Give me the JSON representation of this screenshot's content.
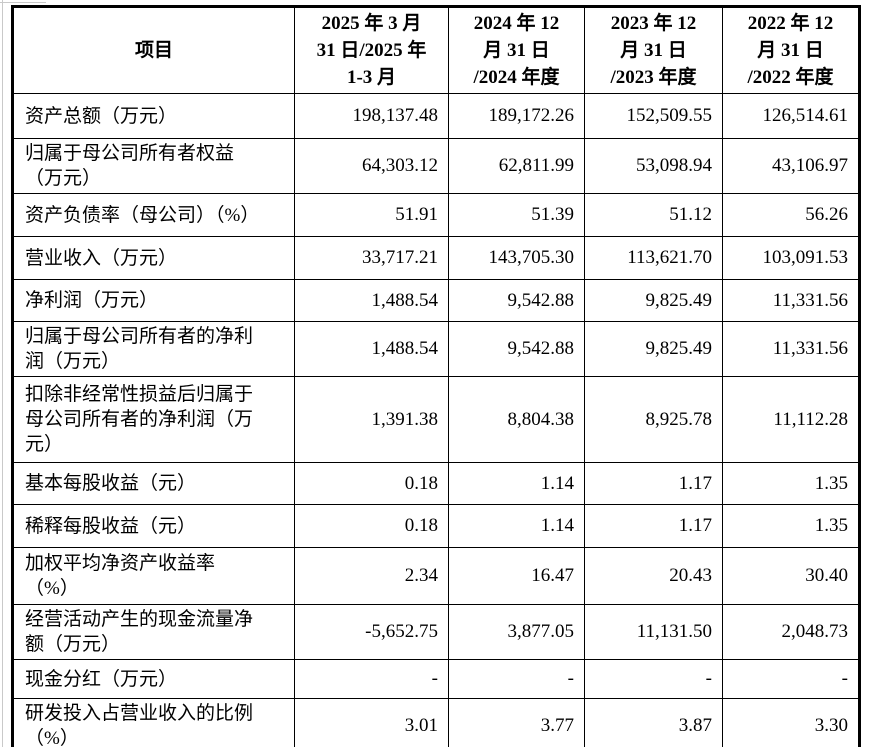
{
  "page": {
    "background": "#ffffff",
    "border_color": "#000000",
    "text_color": "#000000"
  },
  "table": {
    "columns": [
      "项目",
      "2025 年 3 月\n31 日/2025 年\n1-3 月",
      "2024 年 12\n月 31 日\n/2024 年度",
      "2023 年 12\n月 31 日\n/2023 年度",
      "2022 年 12\n月 31 日\n/2022 年度"
    ],
    "rows": [
      {
        "label": "资产总额（万元）",
        "values": [
          "198,137.48",
          "189,172.26",
          "152,509.55",
          "126,514.61"
        ]
      },
      {
        "label": "归属于母公司所有者权益\n（万元）",
        "values": [
          "64,303.12",
          "62,811.99",
          "53,098.94",
          "43,106.97"
        ]
      },
      {
        "label": "资产负债率（母公司）（%）",
        "values": [
          "51.91",
          "51.39",
          "51.12",
          "56.26"
        ]
      },
      {
        "label": "营业收入（万元）",
        "values": [
          "33,717.21",
          "143,705.30",
          "113,621.70",
          "103,091.53"
        ]
      },
      {
        "label": "净利润（万元）",
        "values": [
          "1,488.54",
          "9,542.88",
          "9,825.49",
          "11,331.56"
        ]
      },
      {
        "label": "归属于母公司所有者的净利\n润（万元）",
        "values": [
          "1,488.54",
          "9,542.88",
          "9,825.49",
          "11,331.56"
        ]
      },
      {
        "label": "扣除非经常性损益后归属于\n母公司所有者的净利润（万\n元）",
        "values": [
          "1,391.38",
          "8,804.38",
          "8,925.78",
          "11,112.28"
        ]
      },
      {
        "label": "基本每股收益（元）",
        "values": [
          "0.18",
          "1.14",
          "1.17",
          "1.35"
        ]
      },
      {
        "label": "稀释每股收益（元）",
        "values": [
          "0.18",
          "1.14",
          "1.17",
          "1.35"
        ]
      },
      {
        "label": "加权平均净资产收益率\n（%）",
        "values": [
          "2.34",
          "16.47",
          "20.43",
          "30.40"
        ]
      },
      {
        "label": "经营活动产生的现金流量净\n额（万元）",
        "values": [
          "-5,652.75",
          "3,877.05",
          "11,131.50",
          "2,048.73"
        ]
      },
      {
        "label": "现金分红（万元）",
        "values": [
          "-",
          "-",
          "-",
          "-"
        ]
      },
      {
        "label": "研发投入占营业收入的比例\n（%）",
        "values": [
          "3.01",
          "3.77",
          "3.87",
          "3.30"
        ]
      }
    ]
  },
  "chart_data": {
    "type": "table",
    "title": "主要财务数据表",
    "categories": [
      "2025年3月31日/2025年1-3月",
      "2024年12月31日/2024年度",
      "2023年12月31日/2023年度",
      "2022年12月31日/2022年度"
    ],
    "series": [
      {
        "name": "资产总额（万元）",
        "values": [
          198137.48,
          189172.26,
          152509.55,
          126514.61
        ]
      },
      {
        "name": "归属于母公司所有者权益（万元）",
        "values": [
          64303.12,
          62811.99,
          53098.94,
          43106.97
        ]
      },
      {
        "name": "资产负债率（母公司）（%）",
        "values": [
          51.91,
          51.39,
          51.12,
          56.26
        ]
      },
      {
        "name": "营业收入（万元）",
        "values": [
          33717.21,
          143705.3,
          113621.7,
          103091.53
        ]
      },
      {
        "name": "净利润（万元）",
        "values": [
          1488.54,
          9542.88,
          9825.49,
          11331.56
        ]
      },
      {
        "name": "归属于母公司所有者的净利润（万元）",
        "values": [
          1488.54,
          9542.88,
          9825.49,
          11331.56
        ]
      },
      {
        "name": "扣除非经常性损益后归属于母公司所有者的净利润（万元）",
        "values": [
          1391.38,
          8804.38,
          8925.78,
          11112.28
        ]
      },
      {
        "name": "基本每股收益（元）",
        "values": [
          0.18,
          1.14,
          1.17,
          1.35
        ]
      },
      {
        "name": "稀释每股收益（元）",
        "values": [
          0.18,
          1.14,
          1.17,
          1.35
        ]
      },
      {
        "name": "加权平均净资产收益率（%）",
        "values": [
          2.34,
          16.47,
          20.43,
          30.4
        ]
      },
      {
        "name": "经营活动产生的现金流量净额（万元）",
        "values": [
          -5652.75,
          3877.05,
          11131.5,
          2048.73
        ]
      },
      {
        "name": "现金分红（万元）",
        "values": [
          null,
          null,
          null,
          null
        ]
      },
      {
        "name": "研发投入占营业收入的比例（%）",
        "values": [
          3.01,
          3.77,
          3.87,
          3.3
        ]
      }
    ]
  }
}
